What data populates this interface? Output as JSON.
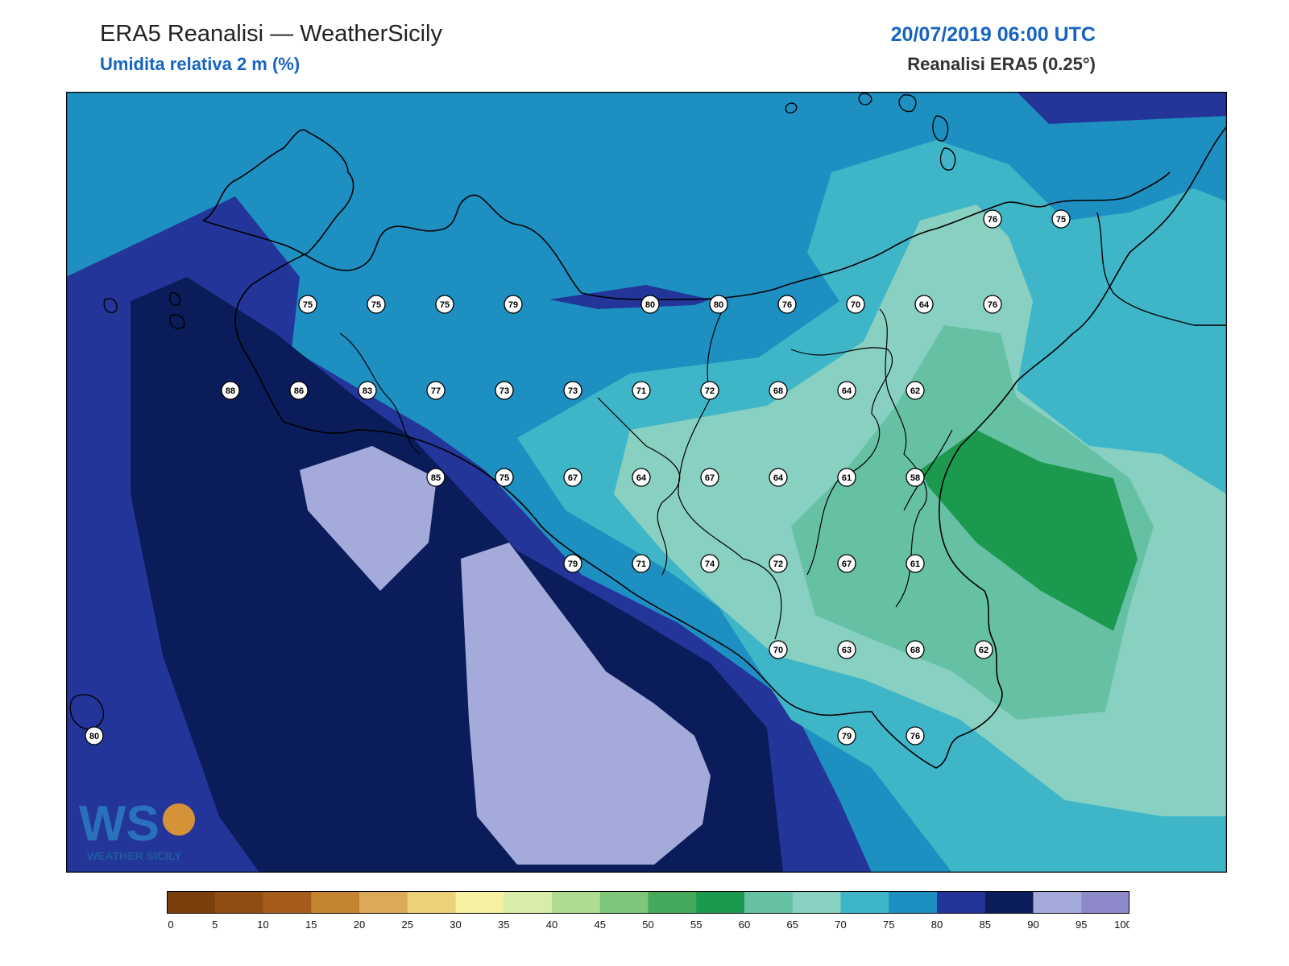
{
  "header": {
    "title": "ERA5 Reanalisi — WeatherSicily",
    "subtitle": "Umidita relativa 2 m (%)",
    "datetime": "20/07/2019 06:00 UTC",
    "source": "Reanalisi ERA5 (0.25°)"
  },
  "logo": {
    "letters": "WS",
    "text": "WEATHER SICILY"
  },
  "colorbar": {
    "ticks": [
      "0",
      "5",
      "10",
      "15",
      "20",
      "25",
      "30",
      "35",
      "40",
      "45",
      "50",
      "55",
      "60",
      "65",
      "70",
      "75",
      "80",
      "85",
      "90",
      "95",
      "100"
    ],
    "colors": [
      "#7a3f0a",
      "#8f4d12",
      "#a65d1c",
      "#c3832f",
      "#dba959",
      "#ecd07a",
      "#f5f1a1",
      "#d9ecab",
      "#b0dc91",
      "#7fc57a",
      "#45a95b",
      "#1b9a4f",
      "#66c1a4",
      "#88d0c1",
      "#3fb6c8",
      "#1d8fc1",
      "#24359a",
      "#0b1c5a",
      "#a4abdb",
      "#8e89c8"
    ]
  },
  "stations": [
    {
      "v": "75",
      "c": "75"
    },
    {
      "v": "75",
      "c": "75"
    },
    {
      "v": "75",
      "c": "75"
    },
    {
      "v": "79",
      "c": "75"
    },
    {
      "v": "80",
      "c": "80"
    },
    {
      "v": "80",
      "c": "75"
    },
    {
      "v": "76",
      "c": "75"
    },
    {
      "v": "70",
      "c": "70"
    },
    {
      "v": "64",
      "c": "70"
    },
    {
      "v": "76",
      "c": "75"
    },
    {
      "v": "76",
      "c": "75"
    },
    {
      "v": "75",
      "c": "75"
    },
    {
      "v": "88",
      "c": "85"
    },
    {
      "v": "86",
      "c": "85"
    },
    {
      "v": "83",
      "c": "85"
    },
    {
      "v": "77",
      "c": "75"
    },
    {
      "v": "73",
      "c": "70"
    },
    {
      "v": "73",
      "c": "70"
    },
    {
      "v": "71",
      "c": "70"
    },
    {
      "v": "72",
      "c": "70"
    },
    {
      "v": "68",
      "c": "65"
    },
    {
      "v": "64",
      "c": "65"
    },
    {
      "v": "62",
      "c": "65"
    },
    {
      "v": "85",
      "c": "85"
    },
    {
      "v": "75",
      "c": "75"
    },
    {
      "v": "67",
      "c": "65"
    },
    {
      "v": "64",
      "c": "65"
    },
    {
      "v": "67",
      "c": "65"
    },
    {
      "v": "64",
      "c": "65"
    },
    {
      "v": "61",
      "c": "60"
    },
    {
      "v": "58",
      "c": "55"
    },
    {
      "v": "79",
      "c": "75"
    },
    {
      "v": "71",
      "c": "70"
    },
    {
      "v": "74",
      "c": "70"
    },
    {
      "v": "72",
      "c": "70"
    },
    {
      "v": "67",
      "c": "65"
    },
    {
      "v": "61",
      "c": "60"
    },
    {
      "v": "70",
      "c": "70"
    },
    {
      "v": "63",
      "c": "60"
    },
    {
      "v": "68",
      "c": "65"
    },
    {
      "v": "62",
      "c": "60"
    },
    {
      "v": "79",
      "c": "75"
    },
    {
      "v": "76",
      "c": "75"
    },
    {
      "v": "80",
      "c": "80"
    }
  ]
}
